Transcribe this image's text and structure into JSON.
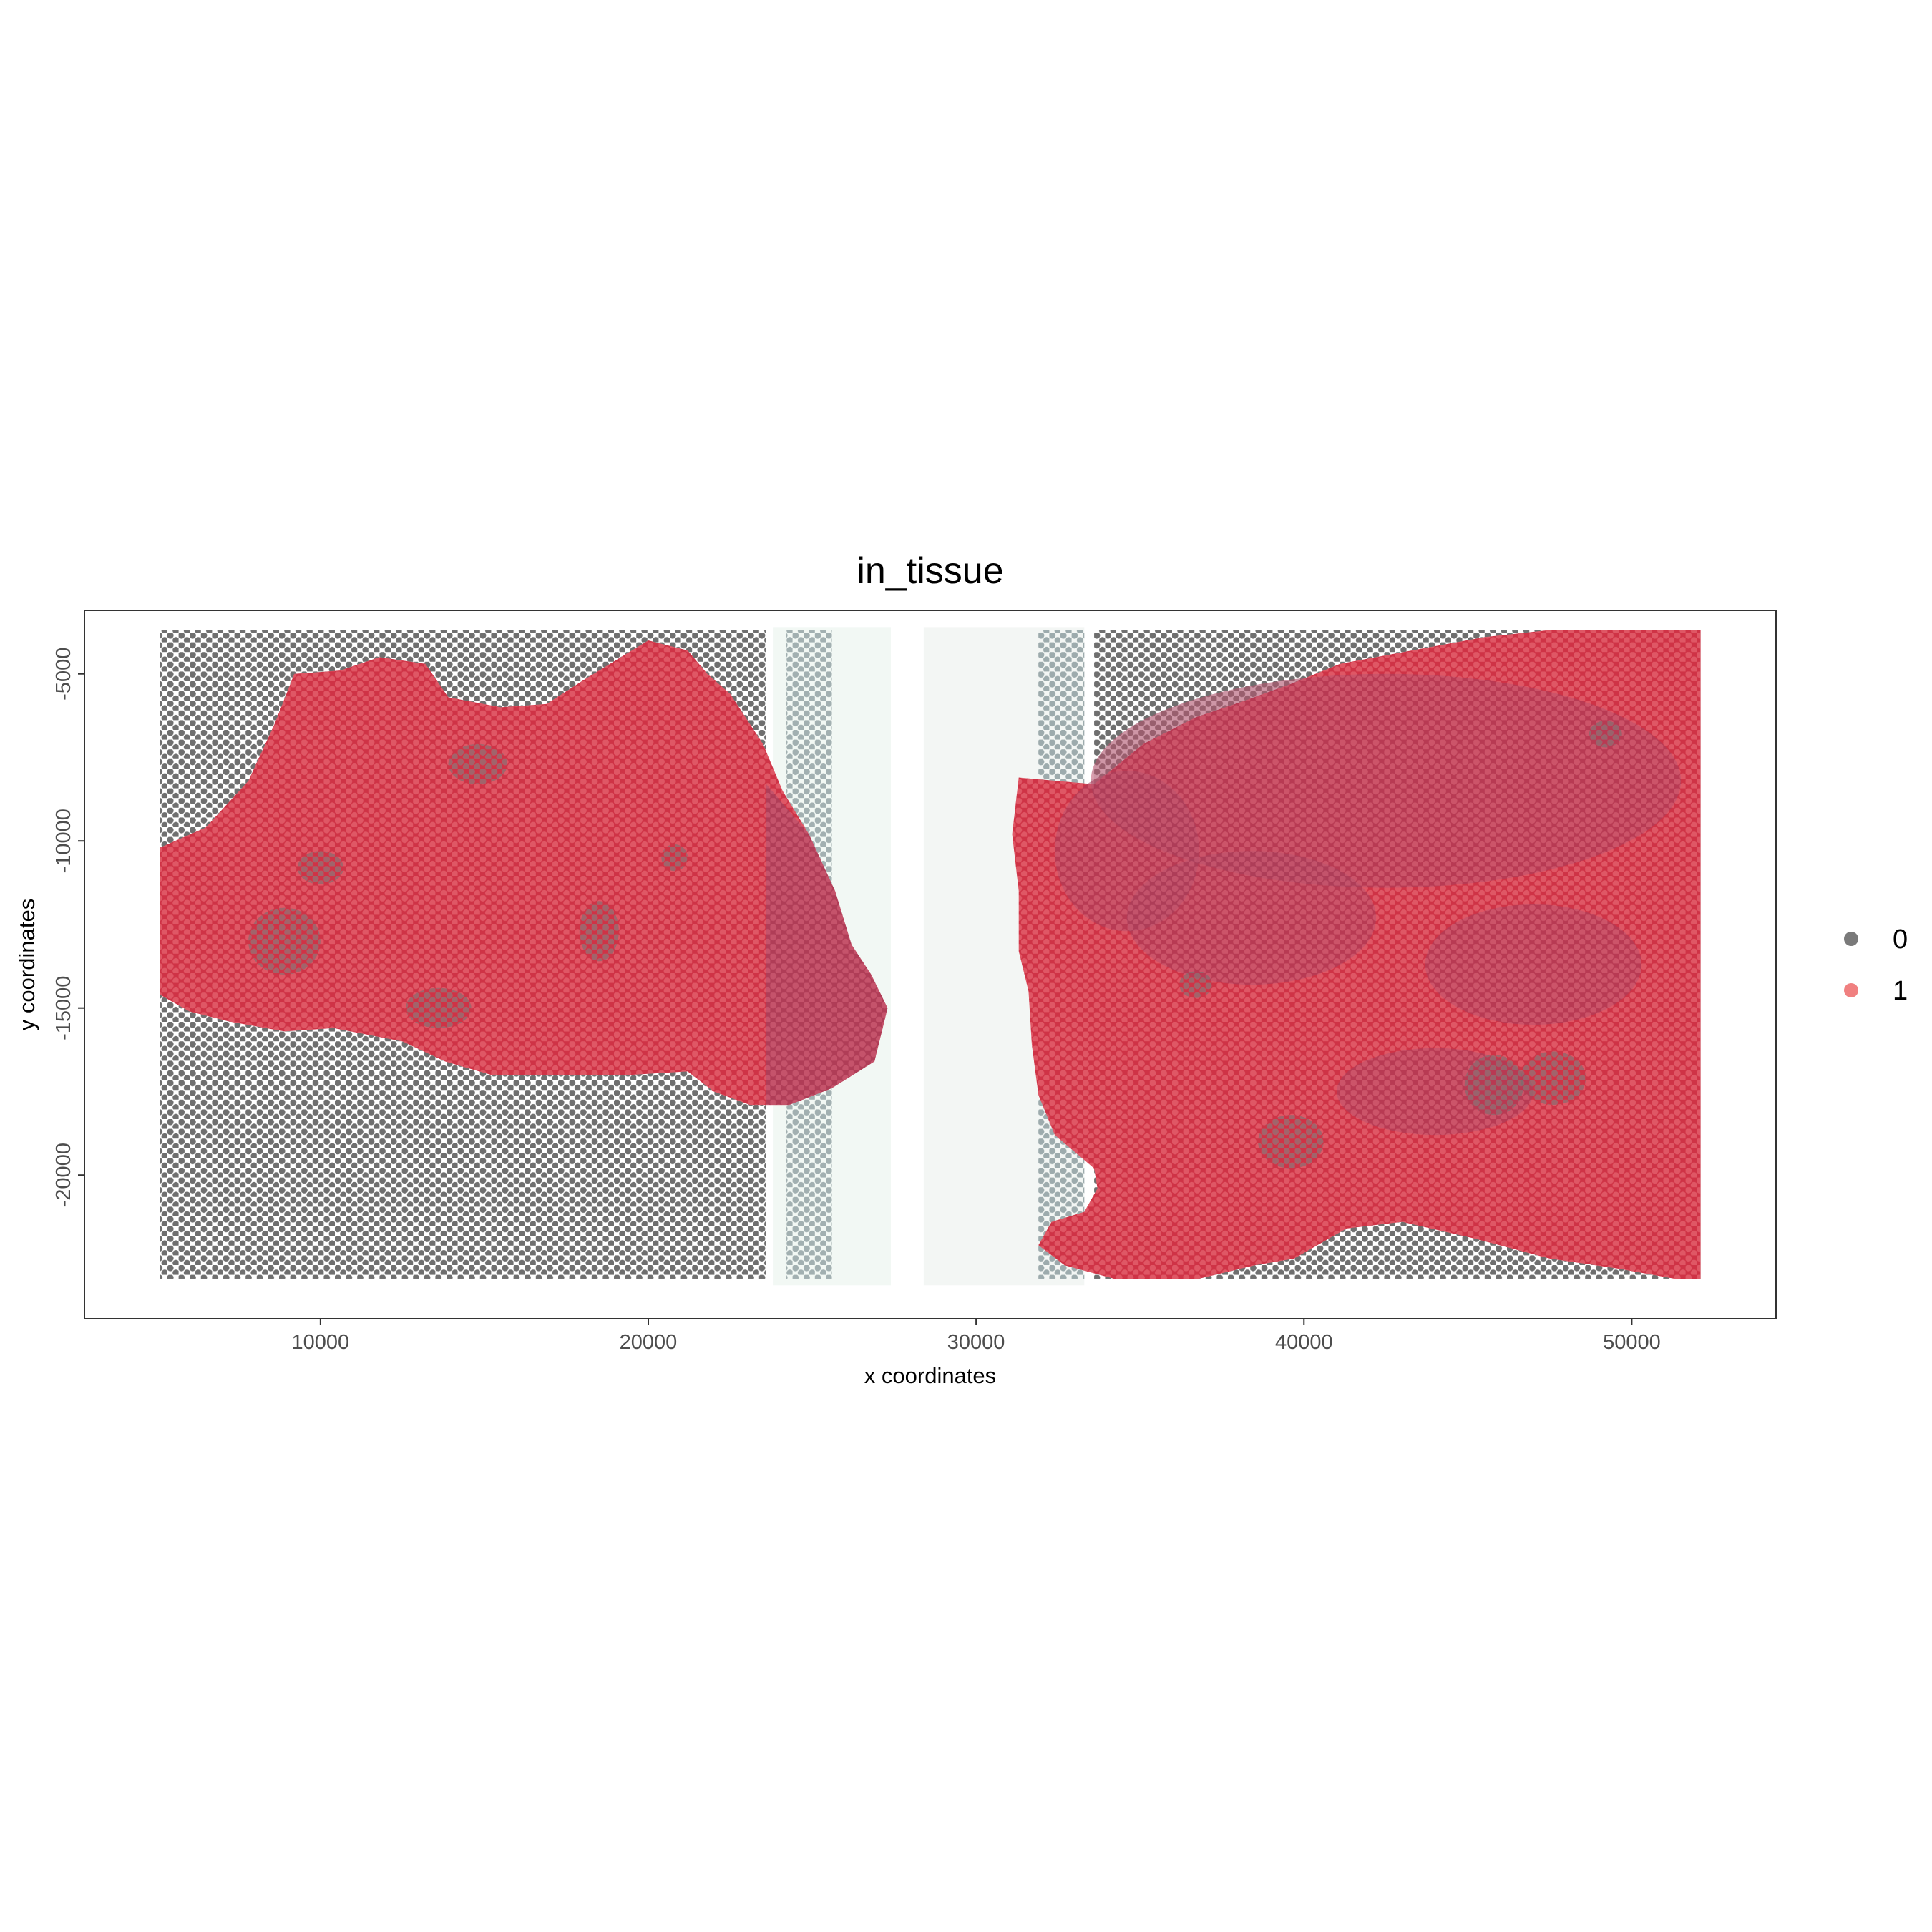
{
  "chart_data": {
    "type": "scatter",
    "title": "in_tissue",
    "xlabel": "x coordinates",
    "ylabel": "y coordinates",
    "xlim": [
      2800,
      54400
    ],
    "ylim": [
      -24300,
      -3100
    ],
    "x_ticks": [
      10000,
      20000,
      30000,
      40000,
      50000
    ],
    "y_ticks": [
      -5000,
      -10000,
      -15000,
      -20000
    ],
    "x_tick_labels": [
      "10000",
      "20000",
      "30000",
      "40000",
      "50000"
    ],
    "y_tick_labels": [
      "-5000",
      "-10000",
      "-15000",
      "-20000"
    ],
    "grid": false,
    "legend_position": "right",
    "legend": [
      {
        "label": "0",
        "color": "#7a7a7a"
      },
      {
        "label": "1",
        "color": "#f08080"
      }
    ],
    "background_image": "H&E tissue sections",
    "tissue_color": "#d23a4c",
    "sections": [
      {
        "name": "left",
        "spot_x_range": [
          5100,
          23600
        ],
        "spot_y_range": [
          -23100,
          -3700
        ],
        "blank_x_range": [
          23800,
          27400
        ]
      },
      {
        "name": "right",
        "spot_x_range": [
          33600,
          52100
        ],
        "spot_y_range": [
          -23100,
          -3700
        ],
        "blank_x_range": [
          28400,
          33300
        ]
      }
    ]
  }
}
